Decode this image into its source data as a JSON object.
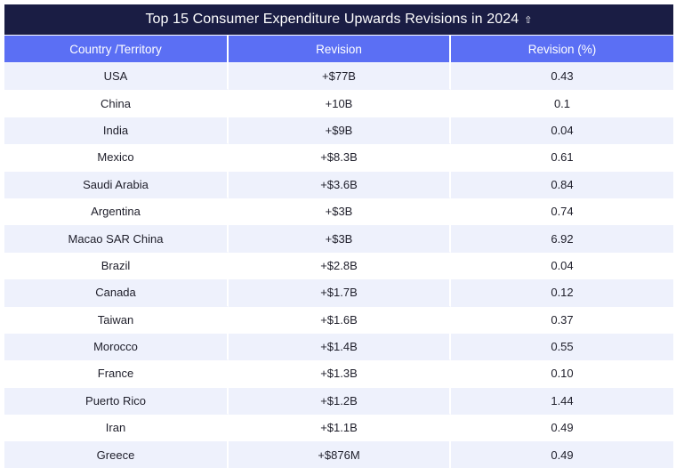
{
  "chart_data": {
    "type": "table",
    "title": "Top 15 Consumer Expenditure Upwards Revisions in 2024",
    "title_icon": "up-arrow-icon",
    "columns": [
      "Country /Territory",
      "Revision",
      "Revision (%)"
    ],
    "rows": [
      [
        "USA",
        "+$77B",
        "0.43"
      ],
      [
        "China",
        "+10B",
        "0.1"
      ],
      [
        "India",
        "+$9B",
        "0.04"
      ],
      [
        "Mexico",
        "+$8.3B",
        "0.61"
      ],
      [
        "Saudi Arabia",
        "+$3.6B",
        "0.84"
      ],
      [
        "Argentina",
        "+$3B",
        "0.74"
      ],
      [
        "Macao SAR China",
        "+$3B",
        "6.92"
      ],
      [
        "Brazil",
        "+$2.8B",
        "0.04"
      ],
      [
        "Canada",
        "+$1.7B",
        "0.12"
      ],
      [
        "Taiwan",
        "+$1.6B",
        "0.37"
      ],
      [
        "Morocco",
        "+$1.4B",
        "0.55"
      ],
      [
        "France",
        "+$1.3B",
        "0.10"
      ],
      [
        "Puerto Rico",
        "+$1.2B",
        "1.44"
      ],
      [
        "Iran",
        "+$1.1B",
        "0.49"
      ],
      [
        "Greece",
        "+$876M",
        "0.49"
      ]
    ]
  },
  "colors": {
    "title_background": "#1a1d44",
    "header_background": "#5b6ff4",
    "stripe": "#eef1fc"
  }
}
